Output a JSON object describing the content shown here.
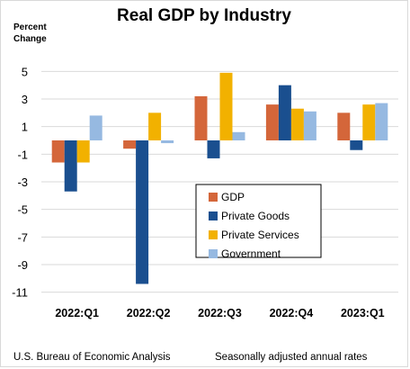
{
  "chart_data": {
    "type": "bar",
    "title": "Real GDP by Industry",
    "ylabel": "Percent\nChange",
    "xlabel": "",
    "categories": [
      "2022:Q1",
      "2022:Q2",
      "2022:Q3",
      "2022:Q4",
      "2023:Q1"
    ],
    "series": [
      {
        "name": "GDP",
        "color": "#d4663a",
        "values": [
          -1.6,
          -0.6,
          3.2,
          2.6,
          2.0
        ]
      },
      {
        "name": "Private Goods",
        "color": "#1a4f8f",
        "values": [
          -3.7,
          -10.4,
          -1.3,
          4.0,
          -0.7
        ]
      },
      {
        "name": "Private Services",
        "color": "#f2b100",
        "values": [
          -1.6,
          2.0,
          4.9,
          2.3,
          2.6
        ]
      },
      {
        "name": "Government",
        "color": "#96b9e1",
        "values": [
          1.8,
          -0.2,
          0.6,
          2.1,
          2.7
        ]
      }
    ],
    "yticks": [
      5,
      3,
      1,
      -1,
      -3,
      -5,
      -7,
      -9,
      -11
    ],
    "ylim": [
      -11,
      5
    ],
    "grid": true,
    "legend": "center-right"
  },
  "footer": {
    "source": "U.S. Bureau of Economic Analysis",
    "note": "Seasonally adjusted annual rates"
  }
}
